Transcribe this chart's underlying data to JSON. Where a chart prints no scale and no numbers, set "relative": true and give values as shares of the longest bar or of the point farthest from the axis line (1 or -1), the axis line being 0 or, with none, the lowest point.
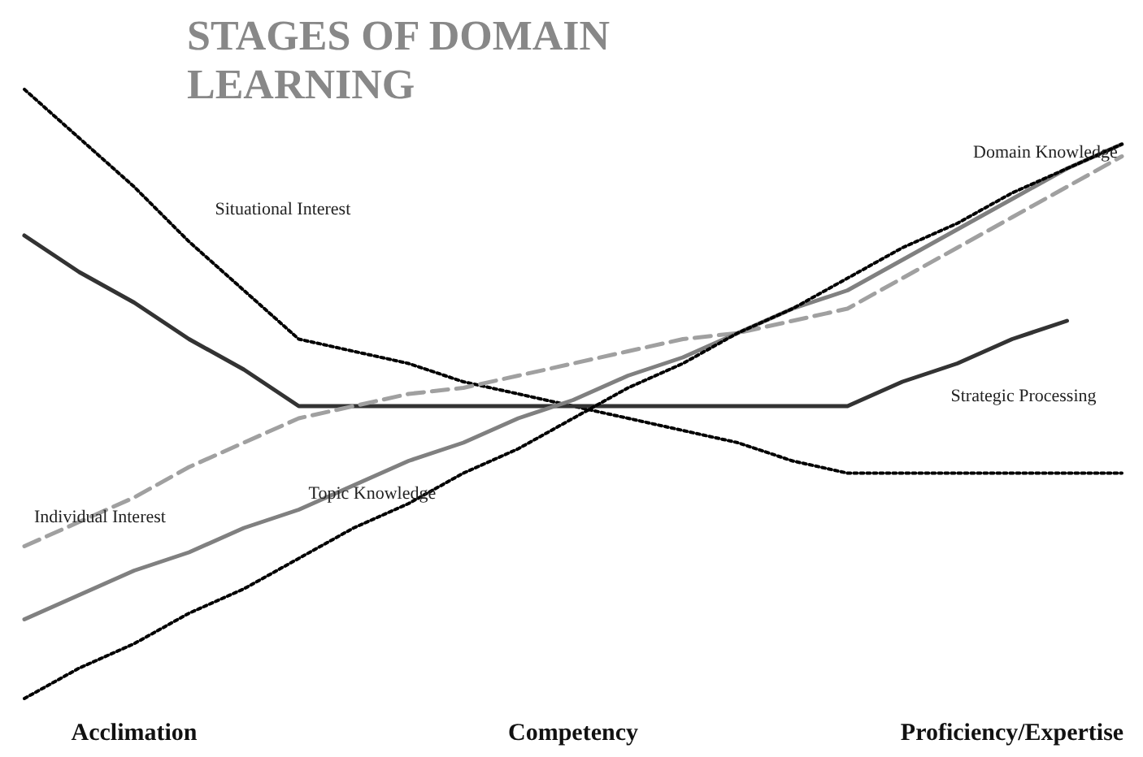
{
  "chart_data": {
    "type": "line",
    "title": "STAGES OF DOMAIN LEARNING",
    "relative": true,
    "marker": "none",
    "legend": false,
    "grid": false,
    "categories": [
      null,
      null,
      "Acclimation",
      null,
      null,
      null,
      null,
      null,
      null,
      null,
      "Competency",
      null,
      null,
      null,
      null,
      null,
      null,
      null,
      "Proficiency/Expertise",
      null,
      null
    ],
    "series": [
      {
        "name": "Situational Interest",
        "color": "#000000",
        "line_style": "dotted",
        "values": [
          1.0,
          0.92,
          0.84,
          0.75,
          0.67,
          0.59,
          0.57,
          0.55,
          0.52,
          0.5,
          0.48,
          0.46,
          0.44,
          0.42,
          0.39,
          0.37,
          0.37,
          0.37,
          0.37,
          0.37,
          0.37
        ]
      },
      {
        "name": "Strategic Processing",
        "color": "#333333",
        "line_style": "solid",
        "values": [
          0.76,
          0.7,
          0.65,
          0.59,
          0.54,
          0.48,
          0.48,
          0.48,
          0.48,
          0.48,
          0.48,
          0.48,
          0.48,
          0.48,
          0.48,
          0.48,
          0.52,
          0.55,
          0.59,
          0.62,
          null
        ]
      },
      {
        "name": "Individual Interest",
        "color": "#a0a0a0",
        "line_style": "dashed",
        "values": [
          0.25,
          0.29,
          0.33,
          0.38,
          0.42,
          0.46,
          0.48,
          0.5,
          0.51,
          0.53,
          0.55,
          0.57,
          0.59,
          0.6,
          0.62,
          0.64,
          0.69,
          0.74,
          0.79,
          0.84,
          0.89
        ]
      },
      {
        "name": "Topic Knowledge",
        "color": "#808080",
        "line_style": "solid",
        "values": [
          0.13,
          0.17,
          0.21,
          0.24,
          0.28,
          0.31,
          0.35,
          0.39,
          0.42,
          0.46,
          0.49,
          0.53,
          0.56,
          0.6,
          0.64,
          0.67,
          0.72,
          0.77,
          0.82,
          0.87,
          0.91
        ]
      },
      {
        "name": "Domain Knowledge",
        "color": "#000000",
        "line_style": "dotted",
        "values": [
          0,
          0.05,
          0.09,
          0.14,
          0.18,
          0.23,
          0.28,
          0.32,
          0.37,
          0.41,
          0.46,
          0.51,
          0.55,
          0.6,
          0.64,
          0.69,
          0.74,
          0.78,
          0.83,
          0.87,
          0.91
        ]
      }
    ]
  }
}
